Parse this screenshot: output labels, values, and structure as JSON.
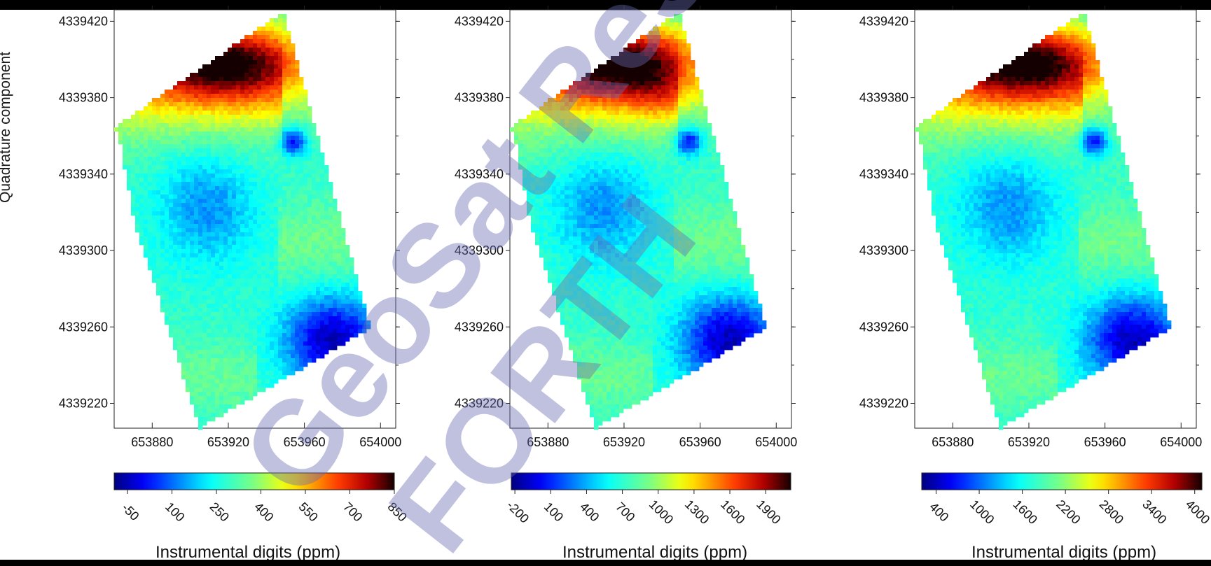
{
  "figure": {
    "ylabel": "Quadrature component",
    "colorbar_title": "Instrumental digits (ppm)",
    "watermark": [
      "GeoSat ReSeArch",
      "FORTH"
    ]
  },
  "colors": {
    "jet": [
      "#00007f",
      "#0000ff",
      "#007fff",
      "#00ffff",
      "#7fff7f",
      "#ffff00",
      "#ff7f00",
      "#ff0000",
      "#7f0000",
      "#000000"
    ],
    "watermark": "#7070b8"
  },
  "chart_data": [
    {
      "type": "heatmap",
      "xlabel": "",
      "ylabel": "Quadrature component",
      "x_ticks": [
        "653880",
        "653920",
        "653960",
        "654000"
      ],
      "y_ticks": [
        "4339220",
        "4339260",
        "4339300",
        "4339340",
        "4339380",
        "4339420"
      ],
      "xlim": [
        653860,
        654008
      ],
      "ylim": [
        4339207,
        4339426
      ],
      "colorbar": {
        "label": "Instrumental digits (ppm)",
        "ticks": [
          "-50",
          "100",
          "250",
          "400",
          "550",
          "700",
          "850"
        ],
        "range": [
          -95,
          850
        ]
      }
    },
    {
      "type": "heatmap",
      "xlabel": "",
      "ylabel": "",
      "x_ticks": [
        "653880",
        "653920",
        "653960",
        "654000"
      ],
      "y_ticks": [
        "4339220",
        "4339260",
        "4339300",
        "4339340",
        "4339380",
        "4339420"
      ],
      "xlim": [
        653860,
        654008
      ],
      "ylim": [
        4339207,
        4339426
      ],
      "colorbar": {
        "label": "Instrumental digits (ppm)",
        "ticks": [
          "-200",
          "100",
          "400",
          "700",
          "1000",
          "1300",
          "1600",
          "1900"
        ],
        "range": [
          -230,
          2110
        ]
      }
    },
    {
      "type": "heatmap",
      "xlabel": "",
      "ylabel": "",
      "x_ticks": [
        "653880",
        "653920",
        "653960",
        "654000"
      ],
      "y_ticks": [
        "4339220",
        "4339260",
        "4339300",
        "4339340",
        "4339380",
        "4339420"
      ],
      "xlim": [
        653860,
        654008
      ],
      "ylim": [
        4339207,
        4339426
      ],
      "colorbar": {
        "label": "Instrumental digits (ppm)",
        "ticks": [
          "400",
          "1000",
          "1600",
          "2200",
          "2800",
          "3400",
          "4000"
        ],
        "range": [
          200,
          4100
        ]
      }
    }
  ]
}
